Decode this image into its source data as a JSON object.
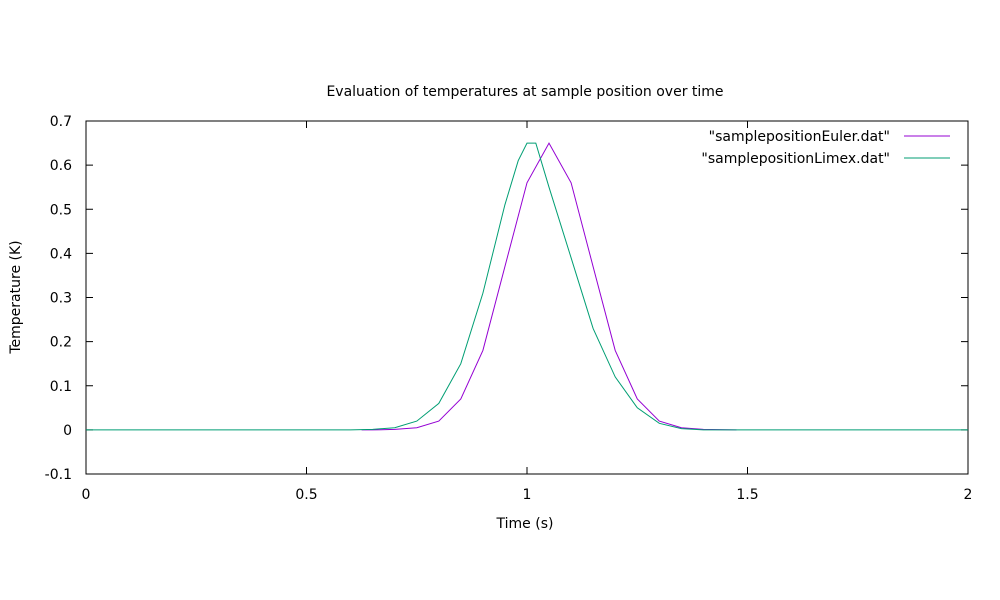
{
  "chart_data": {
    "type": "line",
    "title": "Evaluation of temperatures at sample position over time",
    "xlabel": "Time (s)",
    "ylabel": "Temperature (K)",
    "xlim": [
      0,
      2
    ],
    "ylim": [
      -0.1,
      0.7
    ],
    "xticks": [
      0,
      0.5,
      1,
      1.5,
      2
    ],
    "xtick_labels": [
      "0",
      "0.5",
      "1",
      "1.5",
      "2"
    ],
    "yticks": [
      -0.1,
      0,
      0.1,
      0.2,
      0.3,
      0.4,
      0.5,
      0.6,
      0.7
    ],
    "ytick_labels": [
      "-0.1",
      "0",
      "0.1",
      "0.2",
      "0.3",
      "0.4",
      "0.5",
      "0.6",
      "0.7"
    ],
    "grid": false,
    "legend_position": "top-right",
    "series": [
      {
        "name": "\"samplepositionEuler.dat\"",
        "color": "#9400d3",
        "points": [
          [
            0.625,
            0
          ],
          [
            0.65,
            0
          ],
          [
            0.7,
            0.001
          ],
          [
            0.75,
            0.005
          ],
          [
            0.8,
            0.02
          ],
          [
            0.85,
            0.07
          ],
          [
            0.9,
            0.18
          ],
          [
            0.95,
            0.37
          ],
          [
            1.0,
            0.56
          ],
          [
            1.05,
            0.65
          ],
          [
            1.1,
            0.56
          ],
          [
            1.15,
            0.37
          ],
          [
            1.2,
            0.18
          ],
          [
            1.25,
            0.07
          ],
          [
            1.3,
            0.02
          ],
          [
            1.35,
            0.005
          ],
          [
            1.4,
            0.001
          ],
          [
            1.475,
            0
          ]
        ]
      },
      {
        "name": "\"samplepositionLimex.dat\"",
        "color": "#009e73",
        "points": [
          [
            0,
            0
          ],
          [
            0.6,
            0
          ],
          [
            0.65,
            0.001
          ],
          [
            0.7,
            0.005
          ],
          [
            0.75,
            0.02
          ],
          [
            0.8,
            0.06
          ],
          [
            0.85,
            0.15
          ],
          [
            0.9,
            0.31
          ],
          [
            0.95,
            0.51
          ],
          [
            0.98,
            0.61
          ],
          [
            1.0,
            0.65
          ],
          [
            1.02,
            0.65
          ],
          [
            1.05,
            0.55
          ],
          [
            1.1,
            0.39
          ],
          [
            1.15,
            0.23
          ],
          [
            1.2,
            0.12
          ],
          [
            1.25,
            0.05
          ],
          [
            1.3,
            0.015
          ],
          [
            1.35,
            0.003
          ],
          [
            1.4,
            0
          ],
          [
            2.0,
            0
          ]
        ]
      }
    ]
  }
}
